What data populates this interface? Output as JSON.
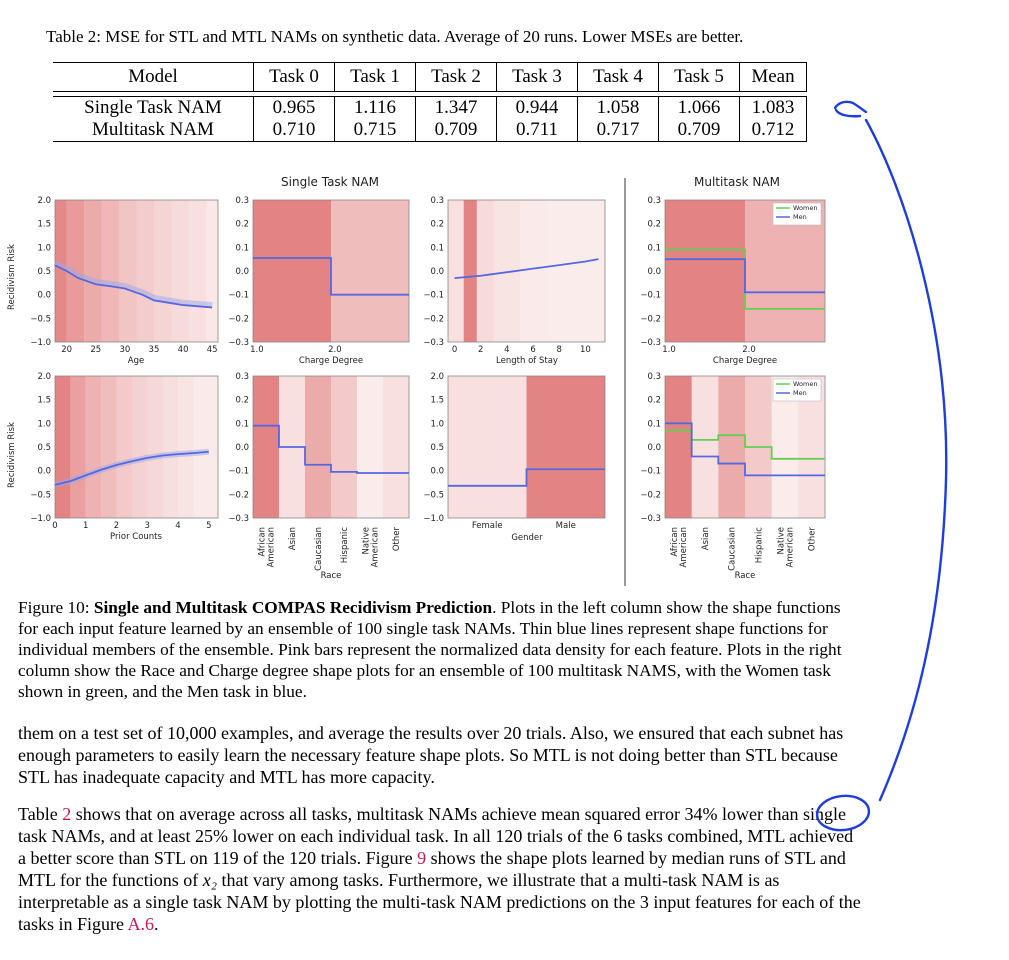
{
  "table": {
    "caption": "Table 2: MSE for STL and MTL NAMs on synthetic data. Average of 20 runs. Lower MSEs are better.",
    "headers": [
      "Model",
      "Task 0",
      "Task 1",
      "Task 2",
      "Task 3",
      "Task 4",
      "Task 5",
      "Mean"
    ],
    "rows": [
      [
        "Single Task NAM",
        "0.965",
        "1.116",
        "1.347",
        "0.944",
        "1.058",
        "1.066",
        "1.083"
      ],
      [
        "Multitask NAM",
        "0.710",
        "0.715",
        "0.709",
        "0.711",
        "0.717",
        "0.709",
        "0.712"
      ]
    ]
  },
  "figure": {
    "single_title": "Single Task NAM",
    "multi_title": "Multitask NAM",
    "ylabel": "Recidivism Risk",
    "legend": {
      "women": "Women",
      "men": "Men"
    },
    "colors": {
      "density": "#e17c7c",
      "men": "#5568e0",
      "women": "#66cc55",
      "shade": "#9aa7ee"
    },
    "panels": {
      "age": {
        "xlabel": "Age",
        "xticks": [
          "20",
          "25",
          "30",
          "35",
          "40",
          "45"
        ],
        "yticks": [
          "2.0",
          "1.5",
          "1.0",
          "0.5",
          "0.0",
          "−0.5",
          "−1.0"
        ]
      },
      "charge": {
        "xlabel": "Charge Degree",
        "xticks": [
          "1.0",
          "2.0"
        ],
        "yticks": [
          "0.3",
          "0.2",
          "0.1",
          "0.0",
          "−0.1",
          "−0.2",
          "−0.3"
        ]
      },
      "stay": {
        "xlabel": "Length of Stay",
        "xticks": [
          "0",
          "2",
          "4",
          "6",
          "8",
          "10"
        ],
        "yticks": [
          "0.3",
          "0.2",
          "0.1",
          "0.0",
          "−0.1",
          "−0.2",
          "−0.3"
        ]
      },
      "prior": {
        "xlabel": "Prior Counts",
        "xticks": [
          "0",
          "1",
          "2",
          "3",
          "4",
          "5"
        ],
        "yticks": [
          "2.0",
          "1.5",
          "1.0",
          "0.5",
          "0.0",
          "−0.5",
          "−1.0"
        ]
      },
      "race": {
        "xlabel": "Race",
        "xticks": [
          "African American",
          "Asian",
          "Caucasian",
          "Hispanic",
          "Native American",
          "Other"
        ],
        "yticks": [
          "0.3",
          "0.2",
          "0.1",
          "0.0",
          "−0.1",
          "−0.2",
          "−0.3"
        ]
      },
      "gender": {
        "xlabel": "Gender",
        "xticks": [
          "Female",
          "Male"
        ],
        "yticks": [
          "2.0",
          "1.5",
          "1.0",
          "0.5",
          "0.0",
          "−0.5",
          "−1.0"
        ]
      }
    }
  },
  "chart_data": [
    {
      "type": "line",
      "title": "Single Task NAM",
      "xlabel": "Age",
      "ylabel": "Recidivism Risk",
      "x": [
        18,
        20,
        22,
        25,
        28,
        30,
        33,
        35,
        38,
        40,
        45
      ],
      "values": [
        0.62,
        0.5,
        0.35,
        0.22,
        0.17,
        0.13,
        0.0,
        -0.12,
        -0.18,
        -0.22,
        -0.27
      ],
      "xlim": [
        18,
        46
      ],
      "ylim": [
        -1.0,
        2.0
      ]
    },
    {
      "type": "bar",
      "title": "Single Task NAM",
      "xlabel": "Charge Degree",
      "categories": [
        "1.0",
        "2.0"
      ],
      "values": [
        0.055,
        -0.1
      ],
      "ylim": [
        -0.3,
        0.3
      ]
    },
    {
      "type": "line",
      "title": "Single Task NAM",
      "xlabel": "Length of Stay",
      "x": [
        0,
        2,
        4,
        6,
        8,
        10,
        11
      ],
      "values": [
        -0.03,
        -0.02,
        -0.005,
        0.01,
        0.025,
        0.04,
        0.05
      ],
      "xlim": [
        -0.5,
        11.5
      ],
      "ylim": [
        -0.3,
        0.3
      ]
    },
    {
      "type": "line",
      "title": "Single Task NAM",
      "xlabel": "Prior Counts",
      "ylabel": "Recidivism Risk",
      "x": [
        0,
        0.5,
        1,
        1.5,
        2,
        2.5,
        3,
        3.5,
        4,
        4.5,
        5
      ],
      "values": [
        -0.3,
        -0.22,
        -0.1,
        0.02,
        0.12,
        0.2,
        0.27,
        0.32,
        0.35,
        0.37,
        0.4
      ],
      "xlim": [
        0,
        5.3
      ],
      "ylim": [
        -1.0,
        2.0
      ]
    },
    {
      "type": "bar",
      "title": "Single Task NAM",
      "xlabel": "Race",
      "categories": [
        "African American",
        "Asian",
        "Caucasian",
        "Hispanic",
        "Native American",
        "Other"
      ],
      "values": [
        0.09,
        0.0,
        -0.075,
        -0.105,
        -0.11,
        -0.11
      ],
      "ylim": [
        -0.3,
        0.3
      ]
    },
    {
      "type": "bar",
      "title": "Single Task NAM",
      "xlabel": "Gender",
      "categories": [
        "Female",
        "Male"
      ],
      "values": [
        -0.32,
        0.03
      ],
      "ylim": [
        -1.0,
        2.0
      ]
    },
    {
      "type": "bar",
      "title": "Multitask NAM",
      "xlabel": "Charge Degree",
      "categories": [
        "1.0",
        "2.0"
      ],
      "series": [
        {
          "name": "Women",
          "values": [
            0.09,
            -0.16
          ]
        },
        {
          "name": "Men",
          "values": [
            0.05,
            -0.09
          ]
        }
      ],
      "ylim": [
        -0.3,
        0.3
      ]
    },
    {
      "type": "bar",
      "title": "Multitask NAM",
      "xlabel": "Race",
      "categories": [
        "African American",
        "Asian",
        "Caucasian",
        "Hispanic",
        "Native American",
        "Other"
      ],
      "series": [
        {
          "name": "Women",
          "values": [
            0.07,
            0.03,
            0.05,
            0.0,
            -0.05,
            -0.05
          ]
        },
        {
          "name": "Men",
          "values": [
            0.1,
            -0.04,
            -0.07,
            -0.12,
            -0.12,
            -0.12
          ]
        }
      ],
      "ylim": [
        -0.3,
        0.3
      ]
    }
  ],
  "caption": {
    "label": "Figure 10:",
    "title": "Single and Multitask COMPAS Recidivism Prediction",
    "text": ". Plots in the left column show the shape functions for each input feature learned by an ensemble of 100 single task NAMs. Thin blue lines represent shape functions for individual members of the ensemble. Pink bars represent the normalized data density for each feature. Plots in the right column show the Race and Charge degree shape plots for an ensemble of 100 multitask NAMS, with the Women task shown in green, and the Men task in blue."
  },
  "body": {
    "p1": "them on a test set of 10,000 examples, and average the results over 20 trials. Also, we ensured that each subnet has enough parameters to easily learn the necessary feature shape plots. So MTL is not doing better than STL because STL has inadequate capacity and MTL has more capacity.",
    "p2a": "Table",
    "ref_table": "2",
    "p2b": "shows that on average across all tasks, multitask NAMs achieve mean squared error 34% lower than single task NAMs, and at least 25% lower on each individual task. In all 120 trials of the 6 tasks combined, MTL achieved a better score than STL on 119 of the 120 trials. Figure",
    "ref_fig": "9",
    "p2c": "shows the shape plots learned by median runs of STL and MTL for the functions of",
    "var": "x₂",
    "p2d": "that vary among tasks. Furthermore, we illustrate that a multi-task NAM is as interpretable as a single task NAM by plotting the multi-task NAM predictions on the 3 input features for each of the tasks in Figure",
    "ref_app": "A.6",
    "p2e": "."
  }
}
